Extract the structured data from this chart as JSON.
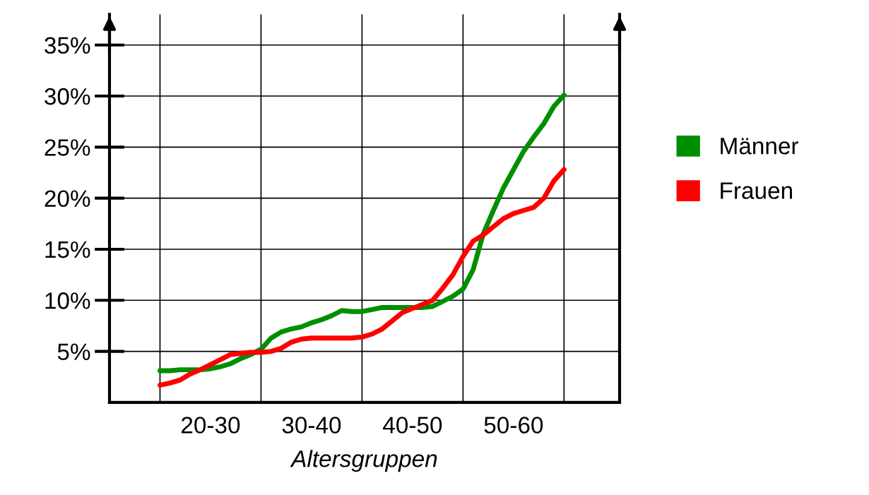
{
  "chart_data": {
    "type": "line",
    "xlabel": "Altersgruppen",
    "ylim": [
      0,
      38
    ],
    "categories": [
      null,
      null,
      null,
      null,
      null,
      "20-30",
      null,
      null,
      null,
      null,
      null,
      null,
      null,
      null,
      null,
      "30-40",
      null,
      null,
      null,
      null,
      null,
      null,
      null,
      null,
      null,
      "40-50",
      null,
      null,
      null,
      null,
      null,
      null,
      null,
      null,
      null,
      "50-60",
      null,
      null,
      null,
      null,
      null
    ],
    "yticks": [
      {
        "value": 5,
        "label": "5%"
      },
      {
        "value": 10,
        "label": "10%"
      },
      {
        "value": 15,
        "label": "15%"
      },
      {
        "value": 20,
        "label": "20%"
      },
      {
        "value": 25,
        "label": "25%"
      },
      {
        "value": 30,
        "label": "30%"
      },
      {
        "value": 35,
        "label": "35%"
      }
    ],
    "grid": true,
    "legend": "right",
    "marker": "none",
    "line_style": "solid",
    "series": [
      {
        "name": "Männer",
        "color": "#008f00",
        "values": [
          3.1,
          3.1,
          3.2,
          3.2,
          3.2,
          3.3,
          3.5,
          3.8,
          4.3,
          4.7,
          5.2,
          6.3,
          6.9,
          7.2,
          7.4,
          7.8,
          8.1,
          8.5,
          9.0,
          8.9,
          8.9,
          9.1,
          9.3,
          9.3,
          9.3,
          9.3,
          9.3,
          9.4,
          9.9,
          10.4,
          11.1,
          13.0,
          16.5,
          18.8,
          21.0,
          22.8,
          24.6,
          26.0,
          27.3,
          29.0,
          30.1
        ]
      },
      {
        "name": "Frauen",
        "color": "#ff0000",
        "values": [
          1.7,
          1.9,
          2.2,
          2.8,
          3.2,
          3.7,
          4.2,
          4.7,
          4.8,
          4.9,
          4.9,
          5.0,
          5.3,
          5.9,
          6.2,
          6.3,
          6.3,
          6.3,
          6.3,
          6.3,
          6.4,
          6.7,
          7.2,
          8.0,
          8.8,
          9.2,
          9.6,
          10.0,
          11.2,
          12.5,
          14.3,
          15.8,
          16.4,
          17.2,
          18.0,
          18.5,
          18.8,
          19.1,
          20.0,
          21.7,
          22.8
        ]
      }
    ]
  }
}
